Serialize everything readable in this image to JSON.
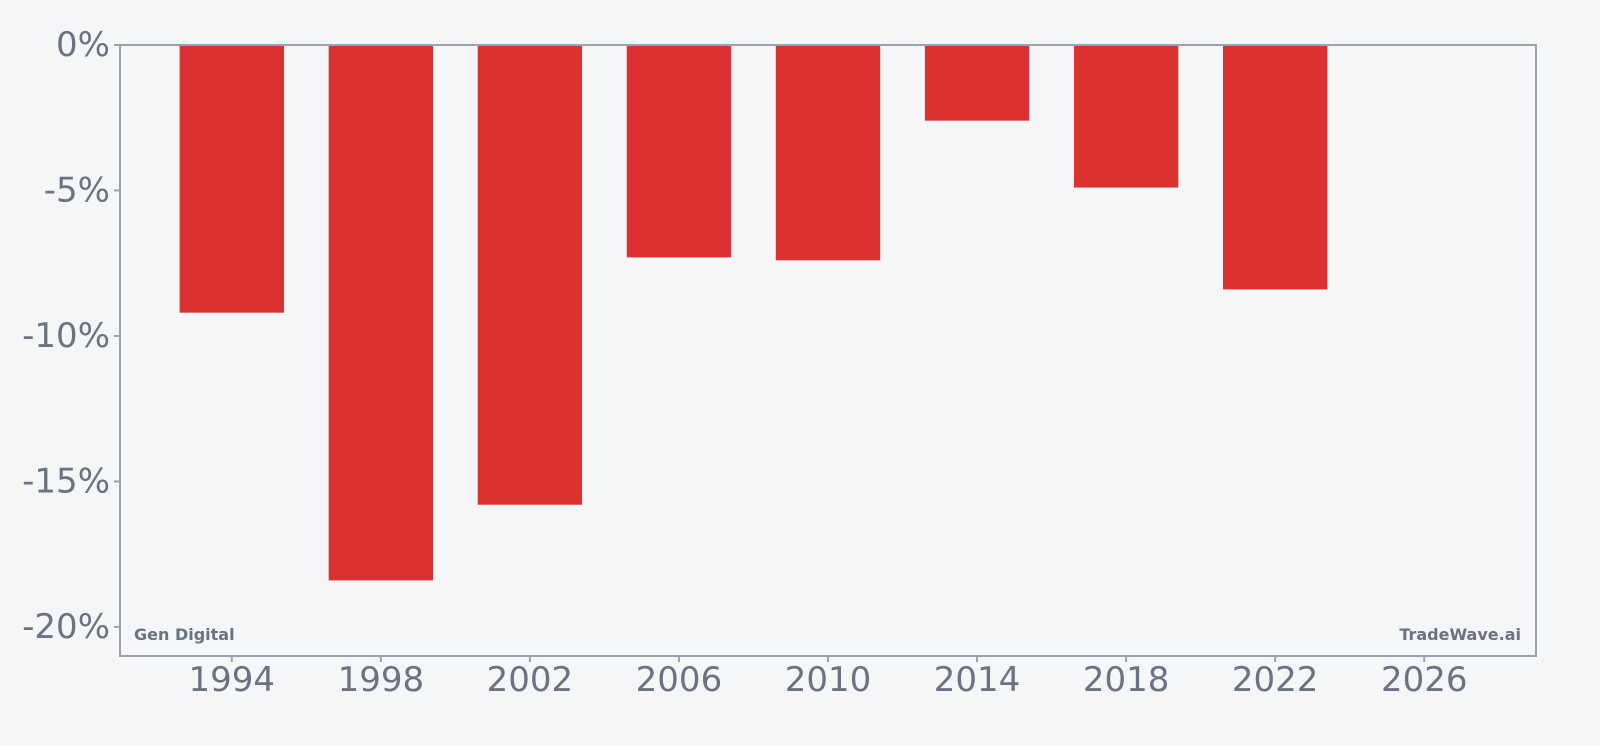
{
  "chart_data": {
    "type": "bar",
    "x": [
      1994,
      1998,
      2002,
      2006,
      2010,
      2014,
      2018,
      2022
    ],
    "values": [
      -9.2,
      -18.4,
      -15.8,
      -7.3,
      -7.4,
      -2.6,
      -4.9,
      -8.4
    ],
    "xlim": [
      1991,
      2029
    ],
    "ylim": [
      -21,
      0
    ],
    "x_ticks": [
      1994,
      1998,
      2002,
      2006,
      2010,
      2014,
      2018,
      2022,
      2026
    ],
    "y_ticks": [
      0,
      -5,
      -10,
      -15,
      -20
    ],
    "y_tick_labels": [
      "0%",
      "-5%",
      "-10%",
      "-15%",
      "-20%"
    ],
    "bar_color": "#dc3031",
    "axis_color": "#9ca3af",
    "text_color": "#6b7280",
    "grid": false,
    "title": "",
    "xlabel": "",
    "ylabel": "",
    "annotations": {
      "company": "Gen Digital",
      "source": "TradeWave.ai"
    }
  }
}
